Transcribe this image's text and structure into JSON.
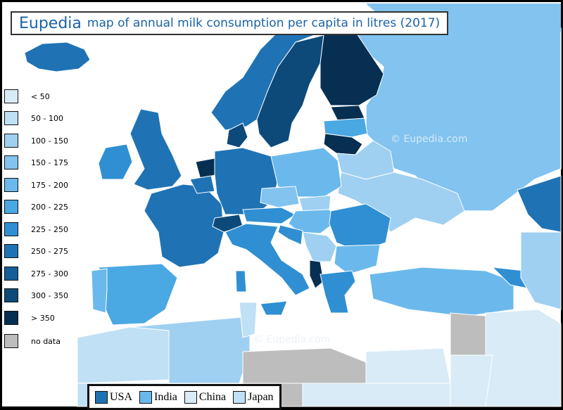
{
  "title": {
    "brand": "Eupedia",
    "text": "map of annual milk consumption per capita in litres (2017)"
  },
  "watermark": "©  Eupedia.com",
  "legend": [
    {
      "label": "< 50",
      "color": "#d9ebf6"
    },
    {
      "label": "50 - 100",
      "color": "#bfe0f5"
    },
    {
      "label": "100 - 150",
      "color": "#9fd0f1"
    },
    {
      "label": "150 - 175",
      "color": "#82c3ef"
    },
    {
      "label": "175 - 200",
      "color": "#6bb9ec"
    },
    {
      "label": "200 - 225",
      "color": "#4aa8e3"
    },
    {
      "label": "225 - 250",
      "color": "#2f8fd2"
    },
    {
      "label": "250 - 275",
      "color": "#1f73b4"
    },
    {
      "label": "275 - 300",
      "color": "#155d96"
    },
    {
      "label": "300 - 350",
      "color": "#0d4a7a"
    },
    {
      "label": "> 350",
      "color": "#062f52"
    },
    {
      "label": "no data",
      "color": "#bdbdbd"
    }
  ],
  "reference": [
    {
      "label": "USA",
      "color": "#1f73b4"
    },
    {
      "label": "India",
      "color": "#6bb9ec"
    },
    {
      "label": "China",
      "color": "#d9ebf6"
    },
    {
      "label": "Japan",
      "color": "#bfe0f5"
    }
  ],
  "colors": {
    "sea": "#ffffff",
    "frame": "#000000",
    "accent": "#1b63a8"
  }
}
